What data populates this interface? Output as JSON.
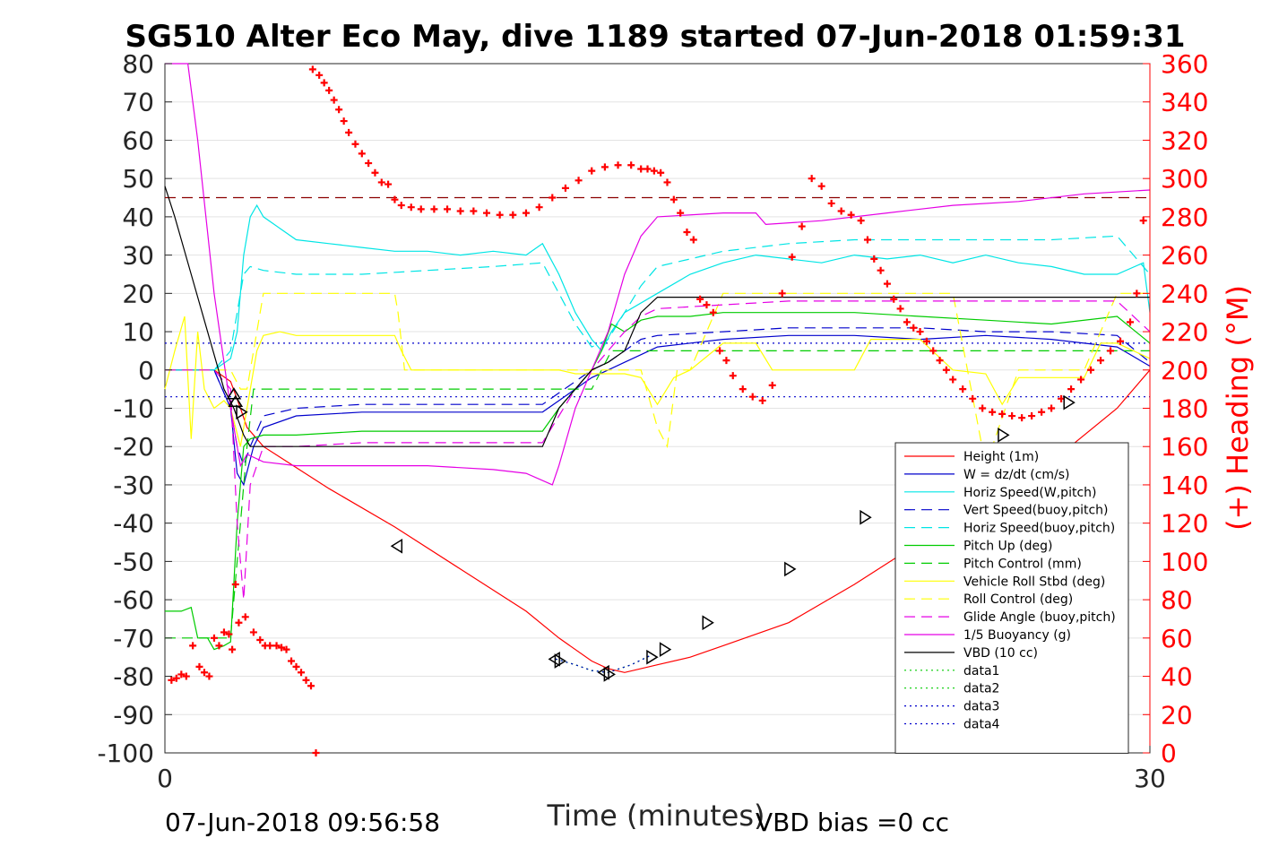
{
  "chart_data": {
    "type": "line",
    "title": "SG510 Alter Eco May, dive 1189 started 07-Jun-2018 01:59:31",
    "xlabel": "Time (minutes)",
    "ylabel": "",
    "y2label": "(+) Heading (°M)",
    "xlim": [
      0,
      30
    ],
    "ylim": [
      -100,
      80
    ],
    "y2lim": [
      0,
      360
    ],
    "xticks": [
      "0",
      "30"
    ],
    "yticks": [
      "80",
      "70",
      "60",
      "50",
      "40",
      "30",
      "20",
      "10",
      "0",
      "-10",
      "-20",
      "-30",
      "-40",
      "-50",
      "-60",
      "-70",
      "-80",
      "-90",
      "-100"
    ],
    "y2ticks": [
      "360",
      "340",
      "320",
      "300",
      "280",
      "260",
      "240",
      "220",
      "200",
      "180",
      "160",
      "140",
      "120",
      "100",
      "80",
      "60",
      "40",
      "20",
      "0"
    ],
    "footer_left": "07-Jun-2018 09:56:58",
    "footer_right": "VBD bias =0 cc",
    "grid": true,
    "legend_position": "bottom-right",
    "series": [
      {
        "name": "Height (1m)",
        "color": "#ff0000",
        "style": "solid",
        "x": [
          0,
          1.5,
          2,
          2.3,
          2.5,
          3,
          5,
          7,
          9,
          11,
          12,
          13,
          13.5,
          14,
          15,
          16,
          17,
          19,
          21,
          23,
          25,
          27,
          29,
          30
        ],
        "y": [
          0,
          0,
          -3,
          -10,
          -15,
          -20,
          -31,
          -41,
          -52,
          -63,
          -70,
          -76,
          -78,
          -79,
          -77,
          -75,
          -72,
          -66,
          -56,
          -45,
          -36,
          -24,
          -10,
          0
        ]
      },
      {
        "name": "W = dz/dt (cm/s)",
        "color": "#0000cc",
        "style": "solid",
        "x": [
          0,
          1,
          1.5,
          2,
          2.2,
          2.4,
          2.7,
          3,
          4,
          6,
          8,
          10,
          11.5,
          12,
          12.5,
          13,
          13.5,
          14,
          14.5,
          15,
          17,
          19,
          21,
          23,
          25,
          27,
          28,
          29,
          30
        ],
        "y": [
          0,
          0,
          0,
          -10,
          -27,
          -30,
          -20,
          -15,
          -12,
          -11,
          -11,
          -11,
          -11,
          -8,
          -5,
          -2,
          0,
          2,
          4,
          6,
          8,
          9,
          9,
          8,
          9,
          8,
          7,
          6,
          1
        ]
      },
      {
        "name": "Horiz Speed(W,pitch)",
        "color": "#00e5e5",
        "style": "solid",
        "x": [
          0,
          1,
          1.5,
          2,
          2.2,
          2.4,
          2.6,
          2.8,
          3,
          3.5,
          4,
          5,
          6,
          7,
          8,
          9,
          10,
          11,
          11.5,
          12,
          12.5,
          13,
          13.3,
          13.6,
          14,
          15,
          16,
          17,
          18,
          19,
          20,
          21,
          22,
          23,
          24,
          25,
          26,
          27,
          28,
          29,
          29.8,
          30
        ],
        "y": [
          0,
          0,
          0,
          3,
          10,
          30,
          40,
          43,
          40,
          37,
          34,
          33,
          32,
          31,
          31,
          30,
          31,
          30,
          33,
          25,
          15,
          8,
          5,
          10,
          15,
          20,
          25,
          28,
          30,
          29,
          28,
          30,
          29,
          30,
          28,
          30,
          28,
          27,
          25,
          25,
          28,
          15
        ]
      },
      {
        "name": "Vert Speed(buoy,pitch)",
        "color": "#0000cc",
        "style": "dash",
        "x": [
          0,
          1.5,
          2,
          2.2,
          2.4,
          2.6,
          3,
          4,
          6,
          8,
          10,
          11.5,
          12,
          12.5,
          13,
          13.5,
          14,
          14.5,
          15,
          17,
          19,
          21,
          23,
          25,
          27,
          29,
          30
        ],
        "y": [
          0,
          0,
          -10,
          -20,
          -25,
          -20,
          -12,
          -10,
          -9,
          -9,
          -9,
          -9,
          -6,
          -3,
          0,
          2,
          5,
          8,
          9,
          10,
          11,
          11,
          11,
          10,
          10,
          9,
          2
        ]
      },
      {
        "name": "Horiz Speed(buoy,pitch)",
        "color": "#00e5e5",
        "style": "dash",
        "x": [
          0,
          1.5,
          2,
          2.2,
          2.4,
          2.6,
          3,
          4,
          6,
          8,
          10,
          11.5,
          12,
          12.5,
          13,
          13.5,
          14,
          14.5,
          15,
          16,
          17,
          19,
          21,
          23,
          25,
          27,
          29,
          30
        ],
        "y": [
          0,
          0,
          5,
          15,
          25,
          27,
          26,
          25,
          25,
          26,
          27,
          28,
          20,
          12,
          6,
          8,
          15,
          22,
          27,
          29,
          31,
          33,
          34,
          34,
          34,
          34,
          35,
          25
        ]
      },
      {
        "name": "Pitch Up (deg)",
        "color": "#00cc00",
        "style": "solid",
        "x": [
          0,
          0.5,
          0.8,
          1,
          1.3,
          1.5,
          1.8,
          2,
          2.2,
          2.4,
          2.6,
          3,
          4,
          6,
          8,
          10,
          11.5,
          12,
          12.5,
          13,
          13.3,
          13.6,
          14,
          14.5,
          15,
          16,
          17,
          19,
          21,
          23,
          25,
          27,
          29,
          30
        ],
        "y": [
          -63,
          -63,
          -62,
          -70,
          -70,
          -73,
          -72,
          -71,
          -40,
          -20,
          -18,
          -17,
          -17,
          -16,
          -16,
          -16,
          -16,
          -10,
          -5,
          0,
          5,
          12,
          10,
          13,
          14,
          14,
          15,
          15,
          15,
          14,
          13,
          12,
          14,
          7
        ]
      },
      {
        "name": "Pitch Control (mm)",
        "color": "#00cc00",
        "style": "dash",
        "x": [
          0,
          2,
          2.1,
          2.3,
          2.5,
          2.7,
          3,
          5,
          8,
          11,
          12,
          12.5,
          13,
          13.3,
          13.6,
          14,
          16,
          20,
          25,
          30
        ],
        "y": [
          -70,
          -70,
          -60,
          -40,
          -20,
          -5,
          -5,
          -5,
          -5,
          -5,
          -5,
          -5,
          -5,
          0,
          5,
          5,
          5,
          5,
          5,
          5
        ]
      },
      {
        "name": "Vehicle Roll Stbd (deg)",
        "color": "#ffff00",
        "style": "solid",
        "x": [
          0,
          0.3,
          0.6,
          0.8,
          1,
          1.2,
          1.5,
          1.8,
          2,
          2.3,
          2.5,
          2.8,
          3,
          3.5,
          4,
          6,
          7,
          7.2,
          7.5,
          8,
          10,
          11,
          12,
          12.5,
          13,
          14,
          14.5,
          15,
          15.5,
          16,
          17,
          18,
          18.5,
          19,
          20,
          21,
          21.5,
          22,
          23,
          24,
          25,
          25.5,
          26,
          27,
          28,
          28.5,
          29,
          30
        ],
        "y": [
          -5,
          5,
          14,
          -18,
          10,
          -5,
          -10,
          -8,
          -10,
          -20,
          -10,
          5,
          9,
          10,
          9,
          9,
          9,
          5,
          0,
          0,
          0,
          0,
          0,
          -1,
          -1,
          -1,
          -2,
          -9,
          -2,
          0,
          7,
          7,
          0,
          0,
          0,
          0,
          8,
          8,
          8,
          0,
          -1,
          -9,
          -2,
          -2,
          -2,
          7,
          7,
          3
        ]
      },
      {
        "name": "Roll Control (deg)",
        "color": "#ffff00",
        "style": "dash",
        "x": [
          0,
          1.5,
          2,
          2.3,
          2.5,
          2.8,
          3,
          5,
          7,
          7.1,
          7.3,
          8,
          10,
          12,
          14,
          14.5,
          15,
          15.3,
          15.6,
          16,
          17,
          18,
          19,
          21,
          23,
          24,
          25,
          26,
          27,
          28,
          29,
          30
        ],
        "y": [
          0,
          0,
          0,
          -5,
          -5,
          10,
          20,
          20,
          20,
          15,
          0,
          0,
          0,
          0,
          0,
          0,
          -15,
          -20,
          0,
          0,
          20,
          20,
          20,
          20,
          20,
          20,
          -25,
          0,
          0,
          0,
          20,
          20
        ]
      },
      {
        "name": "Glide Angle (buoy,pitch)",
        "color": "#e500e5",
        "style": "dash",
        "x": [
          0,
          1.5,
          2,
          2.2,
          2.4,
          2.6,
          3,
          4,
          6,
          8,
          10,
          11.5,
          12,
          12.5,
          13,
          13.5,
          14,
          14.5,
          15,
          17,
          19,
          21,
          23,
          25,
          27,
          29,
          30
        ],
        "y": [
          0,
          0,
          -5,
          -40,
          -60,
          -30,
          -20,
          -20,
          -19,
          -19,
          -19,
          -19,
          -12,
          -5,
          0,
          5,
          10,
          14,
          16,
          17,
          18,
          18,
          18,
          18,
          18,
          18,
          10
        ]
      },
      {
        "name": "1/5 Buoyancy (g)",
        "color": "#e500e5",
        "style": "solid",
        "x": [
          0,
          0.7,
          1,
          1.5,
          2,
          2.3,
          2.5,
          3,
          4,
          6,
          8,
          10,
          11,
          11.8,
          12,
          12.5,
          13,
          13.5,
          14,
          14.5,
          15,
          17,
          18,
          18.3,
          20,
          22,
          24,
          26,
          28,
          30
        ],
        "y": [
          80,
          80,
          60,
          20,
          -10,
          -25,
          -22,
          -24,
          -25,
          -25,
          -25,
          -26,
          -27,
          -30,
          -25,
          -10,
          0,
          10,
          25,
          35,
          40,
          41,
          41,
          38,
          39,
          41,
          43,
          44,
          46,
          47
        ]
      },
      {
        "name": "VBD (10 cc)",
        "color": "#000000",
        "style": "solid",
        "x": [
          0,
          0.3,
          0.8,
          1.3,
          1.8,
          2.1,
          2.4,
          2.6,
          3,
          5,
          8,
          10,
          11.5,
          12,
          12.5,
          13,
          13.5,
          14,
          14.5,
          15,
          16,
          20,
          25,
          30
        ],
        "y": [
          48,
          40,
          25,
          10,
          -5,
          -10,
          -17,
          -20,
          -20,
          -20,
          -20,
          -20,
          -20,
          -10,
          -5,
          0,
          2,
          5,
          15,
          19,
          19,
          19,
          19,
          19
        ]
      },
      {
        "name": "data1",
        "color": "#00cc00",
        "style": "dot",
        "x": [
          11.9,
          12.5,
          13,
          13.5,
          14.2,
          14.8
        ],
        "y": [
          -75.5,
          -77,
          -78.5,
          -79,
          -77,
          -74.5
        ]
      },
      {
        "name": "data2",
        "color": "#00cc00",
        "style": "dot",
        "x": [
          11.9,
          12.5,
          13,
          13.5,
          14.2,
          14.8
        ],
        "y": [
          -75.5,
          -77,
          -78.5,
          -79,
          -77,
          -74.5
        ]
      },
      {
        "name": "data3",
        "color": "#0000cc",
        "style": "dot",
        "x": [
          11.9,
          12.5,
          13,
          13.5,
          14.2,
          14.8
        ],
        "y": [
          -75.5,
          -77,
          -78.5,
          -79,
          -77,
          -74.5
        ]
      },
      {
        "name": "data4",
        "color": "#0000cc",
        "style": "dot",
        "x": [
          0,
          30
        ],
        "y": [
          -7,
          -7
        ]
      }
    ],
    "extra_lines": [
      {
        "color": "#0000cc",
        "style": "dot",
        "y": 7
      },
      {
        "color": "#8b0000",
        "style": "dash",
        "y": 45
      }
    ],
    "heading": {
      "name": "(+) Heading (°M)",
      "color": "#ff0000",
      "marker": "+",
      "x": [
        0.2,
        0.35,
        0.5,
        0.65,
        0.85,
        1.05,
        1.2,
        1.35,
        1.5,
        1.65,
        1.8,
        1.95,
        2.05,
        2.15,
        2.25,
        2.45,
        2.7,
        2.9,
        3.05,
        3.2,
        3.4,
        3.55,
        3.7,
        3.85,
        4.0,
        4.15,
        4.3,
        4.45,
        4.6,
        4.5,
        4.7,
        4.85,
        5.0,
        5.15,
        5.3,
        5.45,
        5.6,
        5.8,
        6.0,
        6.2,
        6.4,
        6.6,
        6.8,
        7.0,
        7.2,
        7.5,
        7.8,
        8.2,
        8.6,
        9.0,
        9.4,
        9.8,
        10.2,
        10.6,
        11.0,
        11.4,
        11.8,
        12.2,
        12.6,
        13.0,
        13.4,
        13.8,
        14.2,
        14.5,
        14.7,
        14.9,
        15.1,
        15.3,
        15.5,
        15.7,
        15.9,
        16.1,
        16.3,
        16.5,
        16.7,
        16.9,
        17.1,
        17.3,
        17.6,
        17.9,
        18.2,
        18.5,
        18.8,
        19.1,
        19.4,
        19.7,
        20.0,
        20.3,
        20.6,
        20.9,
        21.2,
        21.4,
        21.6,
        21.8,
        22.0,
        22.2,
        22.4,
        22.6,
        22.8,
        23.0,
        23.2,
        23.4,
        23.6,
        23.8,
        24.0,
        24.3,
        24.6,
        24.9,
        25.2,
        25.5,
        25.8,
        26.1,
        26.4,
        26.7,
        27.0,
        27.3,
        27.6,
        27.9,
        28.2,
        28.5,
        28.8,
        29.1,
        29.4,
        29.6,
        29.8
      ],
      "y": [
        38,
        39,
        41,
        40,
        56,
        45,
        42,
        40,
        60,
        56,
        63,
        62,
        54,
        88,
        68,
        71,
        63,
        59,
        56,
        56,
        56,
        55,
        54,
        48,
        45,
        42,
        38,
        35,
        0,
        357,
        354,
        350,
        346,
        341,
        336,
        330,
        324,
        318,
        313,
        308,
        303,
        298,
        297,
        289,
        286,
        285,
        284,
        284,
        284,
        283,
        283,
        282,
        281,
        281,
        282,
        285,
        290,
        295,
        299,
        304,
        306,
        307,
        307,
        305,
        305,
        304,
        303,
        298,
        289,
        282,
        272,
        268,
        237,
        234,
        230,
        210,
        205,
        197,
        190,
        186,
        184,
        192,
        240,
        259,
        275,
        300,
        296,
        287,
        283,
        281,
        278,
        268,
        258,
        252,
        245,
        237,
        232,
        225,
        222,
        220,
        215,
        210,
        205,
        200,
        195,
        190,
        185,
        180,
        178,
        177,
        176,
        175,
        176,
        178,
        180,
        185,
        190,
        195,
        200,
        205,
        210,
        215,
        225,
        240,
        278
      ]
    },
    "markers": {
      "name": "Height triangles",
      "color": "#000000",
      "x": [
        2.1,
        2.15,
        2.3,
        7.1,
        11.9,
        12.0,
        13.4,
        13.5,
        14.8,
        15.2,
        16.5,
        19.0,
        21.3,
        25.5,
        27.5
      ],
      "y": [
        -6.5,
        -8.5,
        -11,
        -46,
        -75.5,
        -76,
        -79,
        -79.5,
        -75,
        -73,
        -66,
        -52,
        -38.5,
        -17,
        -8.5
      ],
      "dir": [
        "up",
        "up",
        "right",
        "left",
        "left",
        "right",
        "left",
        "right",
        "right",
        "right",
        "right",
        "right",
        "right",
        "right",
        "right"
      ]
    }
  }
}
